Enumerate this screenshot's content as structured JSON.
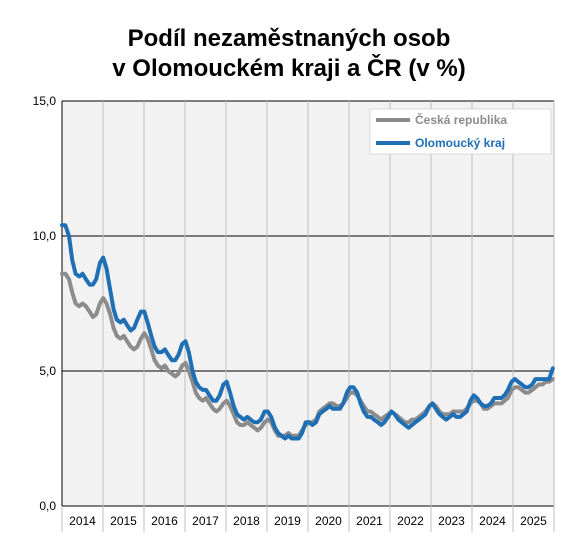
{
  "chart_data": {
    "type": "line",
    "title_lines": [
      "Podíl nezaměstnaných osob",
      "v Olomouckém kraji a ČR (v %)"
    ],
    "xlabel": "",
    "ylabel": "",
    "ylim": [
      0,
      15
    ],
    "yticks": [
      "0,0",
      "5,0",
      "10,0",
      "15,0"
    ],
    "years": [
      "2014",
      "2015",
      "2016",
      "2017",
      "2018",
      "2019",
      "2020",
      "2021",
      "2022",
      "2023",
      "2024",
      "2025"
    ],
    "xrange": [
      2014.0,
      2025.95
    ],
    "grid": true,
    "legend_position": "top-right",
    "series": [
      {
        "name": "Česká republika",
        "color": "#8c8c8c",
        "points": [
          [
            2014.0,
            8.6
          ],
          [
            2014.08,
            8.6
          ],
          [
            2014.17,
            8.4
          ],
          [
            2014.25,
            7.9
          ],
          [
            2014.33,
            7.5
          ],
          [
            2014.42,
            7.4
          ],
          [
            2014.5,
            7.5
          ],
          [
            2014.58,
            7.4
          ],
          [
            2014.67,
            7.2
          ],
          [
            2014.75,
            7.0
          ],
          [
            2014.83,
            7.1
          ],
          [
            2014.92,
            7.5
          ],
          [
            2015.0,
            7.7
          ],
          [
            2015.08,
            7.5
          ],
          [
            2015.17,
            7.1
          ],
          [
            2015.25,
            6.6
          ],
          [
            2015.33,
            6.3
          ],
          [
            2015.42,
            6.2
          ],
          [
            2015.5,
            6.3
          ],
          [
            2015.58,
            6.1
          ],
          [
            2015.67,
            5.9
          ],
          [
            2015.75,
            5.8
          ],
          [
            2015.83,
            5.9
          ],
          [
            2015.92,
            6.2
          ],
          [
            2016.0,
            6.4
          ],
          [
            2016.08,
            6.2
          ],
          [
            2016.17,
            5.8
          ],
          [
            2016.25,
            5.4
          ],
          [
            2016.33,
            5.2
          ],
          [
            2016.42,
            5.1
          ],
          [
            2016.5,
            5.2
          ],
          [
            2016.58,
            5.0
          ],
          [
            2016.67,
            4.9
          ],
          [
            2016.75,
            4.8
          ],
          [
            2016.83,
            4.9
          ],
          [
            2016.92,
            5.2
          ],
          [
            2017.0,
            5.3
          ],
          [
            2017.08,
            5.0
          ],
          [
            2017.17,
            4.6
          ],
          [
            2017.25,
            4.2
          ],
          [
            2017.33,
            4.0
          ],
          [
            2017.42,
            3.9
          ],
          [
            2017.5,
            4.0
          ],
          [
            2017.58,
            3.8
          ],
          [
            2017.67,
            3.6
          ],
          [
            2017.75,
            3.5
          ],
          [
            2017.83,
            3.6
          ],
          [
            2017.92,
            3.8
          ],
          [
            2018.0,
            3.9
          ],
          [
            2018.08,
            3.7
          ],
          [
            2018.17,
            3.4
          ],
          [
            2018.25,
            3.1
          ],
          [
            2018.33,
            3.0
          ],
          [
            2018.42,
            3.0
          ],
          [
            2018.5,
            3.1
          ],
          [
            2018.58,
            3.0
          ],
          [
            2018.67,
            2.9
          ],
          [
            2018.75,
            2.8
          ],
          [
            2018.83,
            2.9
          ],
          [
            2018.92,
            3.1
          ],
          [
            2019.0,
            3.2
          ],
          [
            2019.08,
            3.1
          ],
          [
            2019.17,
            2.8
          ],
          [
            2019.25,
            2.6
          ],
          [
            2019.33,
            2.6
          ],
          [
            2019.42,
            2.6
          ],
          [
            2019.5,
            2.7
          ],
          [
            2019.58,
            2.6
          ],
          [
            2019.67,
            2.6
          ],
          [
            2019.75,
            2.6
          ],
          [
            2019.83,
            2.8
          ],
          [
            2019.92,
            3.0
          ],
          [
            2020.0,
            3.1
          ],
          [
            2020.08,
            3.1
          ],
          [
            2020.17,
            3.2
          ],
          [
            2020.25,
            3.5
          ],
          [
            2020.33,
            3.6
          ],
          [
            2020.42,
            3.7
          ],
          [
            2020.5,
            3.8
          ],
          [
            2020.58,
            3.8
          ],
          [
            2020.67,
            3.7
          ],
          [
            2020.75,
            3.7
          ],
          [
            2020.83,
            3.8
          ],
          [
            2020.92,
            4.0
          ],
          [
            2021.0,
            4.2
          ],
          [
            2021.08,
            4.2
          ],
          [
            2021.17,
            4.1
          ],
          [
            2021.25,
            3.9
          ],
          [
            2021.33,
            3.7
          ],
          [
            2021.42,
            3.5
          ],
          [
            2021.5,
            3.5
          ],
          [
            2021.58,
            3.4
          ],
          [
            2021.67,
            3.3
          ],
          [
            2021.75,
            3.2
          ],
          [
            2021.83,
            3.3
          ],
          [
            2021.92,
            3.4
          ],
          [
            2022.0,
            3.5
          ],
          [
            2022.08,
            3.4
          ],
          [
            2022.17,
            3.3
          ],
          [
            2022.25,
            3.2
          ],
          [
            2022.33,
            3.1
          ],
          [
            2022.42,
            3.1
          ],
          [
            2022.5,
            3.2
          ],
          [
            2022.58,
            3.2
          ],
          [
            2022.67,
            3.3
          ],
          [
            2022.75,
            3.4
          ],
          [
            2022.83,
            3.5
          ],
          [
            2022.92,
            3.7
          ],
          [
            2023.0,
            3.8
          ],
          [
            2023.08,
            3.7
          ],
          [
            2023.17,
            3.5
          ],
          [
            2023.25,
            3.4
          ],
          [
            2023.33,
            3.4
          ],
          [
            2023.42,
            3.4
          ],
          [
            2023.5,
            3.5
          ],
          [
            2023.58,
            3.5
          ],
          [
            2023.67,
            3.5
          ],
          [
            2023.75,
            3.5
          ],
          [
            2023.83,
            3.6
          ],
          [
            2023.92,
            3.8
          ],
          [
            2024.0,
            3.9
          ],
          [
            2024.08,
            3.9
          ],
          [
            2024.17,
            3.8
          ],
          [
            2024.25,
            3.6
          ],
          [
            2024.33,
            3.6
          ],
          [
            2024.42,
            3.7
          ],
          [
            2024.5,
            3.8
          ],
          [
            2024.58,
            3.8
          ],
          [
            2024.67,
            3.8
          ],
          [
            2024.75,
            3.9
          ],
          [
            2024.83,
            4.0
          ],
          [
            2024.92,
            4.3
          ],
          [
            2025.0,
            4.4
          ],
          [
            2025.08,
            4.4
          ],
          [
            2025.17,
            4.3
          ],
          [
            2025.25,
            4.2
          ],
          [
            2025.33,
            4.2
          ],
          [
            2025.42,
            4.3
          ],
          [
            2025.5,
            4.4
          ],
          [
            2025.58,
            4.5
          ],
          [
            2025.67,
            4.5
          ],
          [
            2025.75,
            4.6
          ],
          [
            2025.83,
            4.6
          ],
          [
            2025.92,
            4.7
          ]
        ]
      },
      {
        "name": "Olomoucký kraj",
        "color": "#1f6fb4",
        "points": [
          [
            2014.0,
            10.4
          ],
          [
            2014.08,
            10.4
          ],
          [
            2014.17,
            10.0
          ],
          [
            2014.25,
            9.1
          ],
          [
            2014.33,
            8.6
          ],
          [
            2014.42,
            8.5
          ],
          [
            2014.5,
            8.6
          ],
          [
            2014.58,
            8.4
          ],
          [
            2014.67,
            8.2
          ],
          [
            2014.75,
            8.2
          ],
          [
            2014.83,
            8.4
          ],
          [
            2014.92,
            9.0
          ],
          [
            2015.0,
            9.2
          ],
          [
            2015.08,
            8.8
          ],
          [
            2015.17,
            8.0
          ],
          [
            2015.25,
            7.3
          ],
          [
            2015.33,
            6.9
          ],
          [
            2015.42,
            6.8
          ],
          [
            2015.5,
            6.9
          ],
          [
            2015.58,
            6.7
          ],
          [
            2015.67,
            6.5
          ],
          [
            2015.75,
            6.6
          ],
          [
            2015.83,
            6.9
          ],
          [
            2015.92,
            7.2
          ],
          [
            2016.0,
            7.2
          ],
          [
            2016.08,
            6.8
          ],
          [
            2016.17,
            6.3
          ],
          [
            2016.25,
            5.9
          ],
          [
            2016.33,
            5.7
          ],
          [
            2016.42,
            5.7
          ],
          [
            2016.5,
            5.8
          ],
          [
            2016.58,
            5.6
          ],
          [
            2016.67,
            5.4
          ],
          [
            2016.75,
            5.4
          ],
          [
            2016.83,
            5.6
          ],
          [
            2016.92,
            6.0
          ],
          [
            2017.0,
            6.1
          ],
          [
            2017.08,
            5.7
          ],
          [
            2017.17,
            5.0
          ],
          [
            2017.25,
            4.6
          ],
          [
            2017.33,
            4.4
          ],
          [
            2017.42,
            4.3
          ],
          [
            2017.5,
            4.3
          ],
          [
            2017.58,
            4.1
          ],
          [
            2017.67,
            3.9
          ],
          [
            2017.75,
            3.9
          ],
          [
            2017.83,
            4.1
          ],
          [
            2017.92,
            4.5
          ],
          [
            2018.0,
            4.6
          ],
          [
            2018.08,
            4.2
          ],
          [
            2018.17,
            3.7
          ],
          [
            2018.25,
            3.4
          ],
          [
            2018.33,
            3.3
          ],
          [
            2018.42,
            3.2
          ],
          [
            2018.5,
            3.3
          ],
          [
            2018.58,
            3.2
          ],
          [
            2018.67,
            3.1
          ],
          [
            2018.75,
            3.1
          ],
          [
            2018.83,
            3.2
          ],
          [
            2018.92,
            3.5
          ],
          [
            2019.0,
            3.5
          ],
          [
            2019.08,
            3.3
          ],
          [
            2019.17,
            2.9
          ],
          [
            2019.25,
            2.7
          ],
          [
            2019.33,
            2.6
          ],
          [
            2019.42,
            2.5
          ],
          [
            2019.5,
            2.6
          ],
          [
            2019.58,
            2.5
          ],
          [
            2019.67,
            2.5
          ],
          [
            2019.75,
            2.5
          ],
          [
            2019.83,
            2.7
          ],
          [
            2019.92,
            3.1
          ],
          [
            2020.0,
            3.1
          ],
          [
            2020.08,
            3.0
          ],
          [
            2020.17,
            3.1
          ],
          [
            2020.25,
            3.4
          ],
          [
            2020.33,
            3.5
          ],
          [
            2020.42,
            3.6
          ],
          [
            2020.5,
            3.7
          ],
          [
            2020.58,
            3.6
          ],
          [
            2020.67,
            3.6
          ],
          [
            2020.75,
            3.6
          ],
          [
            2020.83,
            3.8
          ],
          [
            2020.92,
            4.2
          ],
          [
            2021.0,
            4.4
          ],
          [
            2021.08,
            4.4
          ],
          [
            2021.17,
            4.2
          ],
          [
            2021.25,
            3.8
          ],
          [
            2021.33,
            3.5
          ],
          [
            2021.42,
            3.3
          ],
          [
            2021.5,
            3.3
          ],
          [
            2021.58,
            3.2
          ],
          [
            2021.67,
            3.1
          ],
          [
            2021.75,
            3.0
          ],
          [
            2021.83,
            3.1
          ],
          [
            2021.92,
            3.3
          ],
          [
            2022.0,
            3.5
          ],
          [
            2022.08,
            3.4
          ],
          [
            2022.17,
            3.2
          ],
          [
            2022.25,
            3.1
          ],
          [
            2022.33,
            3.0
          ],
          [
            2022.42,
            2.9
          ],
          [
            2022.5,
            3.0
          ],
          [
            2022.58,
            3.1
          ],
          [
            2022.67,
            3.2
          ],
          [
            2022.75,
            3.3
          ],
          [
            2022.83,
            3.4
          ],
          [
            2022.92,
            3.7
          ],
          [
            2023.0,
            3.8
          ],
          [
            2023.08,
            3.6
          ],
          [
            2023.17,
            3.4
          ],
          [
            2023.25,
            3.3
          ],
          [
            2023.33,
            3.2
          ],
          [
            2023.42,
            3.3
          ],
          [
            2023.5,
            3.4
          ],
          [
            2023.58,
            3.3
          ],
          [
            2023.67,
            3.3
          ],
          [
            2023.75,
            3.4
          ],
          [
            2023.83,
            3.5
          ],
          [
            2023.92,
            3.9
          ],
          [
            2024.0,
            4.1
          ],
          [
            2024.08,
            4.0
          ],
          [
            2024.17,
            3.8
          ],
          [
            2024.25,
            3.7
          ],
          [
            2024.33,
            3.7
          ],
          [
            2024.42,
            3.8
          ],
          [
            2024.5,
            4.0
          ],
          [
            2024.58,
            4.0
          ],
          [
            2024.67,
            4.0
          ],
          [
            2024.75,
            4.1
          ],
          [
            2024.83,
            4.3
          ],
          [
            2024.92,
            4.6
          ],
          [
            2025.0,
            4.7
          ],
          [
            2025.08,
            4.6
          ],
          [
            2025.17,
            4.5
          ],
          [
            2025.25,
            4.4
          ],
          [
            2025.33,
            4.4
          ],
          [
            2025.42,
            4.5
          ],
          [
            2025.5,
            4.7
          ],
          [
            2025.58,
            4.7
          ],
          [
            2025.67,
            4.7
          ],
          [
            2025.75,
            4.7
          ],
          [
            2025.83,
            4.7
          ],
          [
            2025.92,
            5.1
          ]
        ]
      }
    ]
  }
}
